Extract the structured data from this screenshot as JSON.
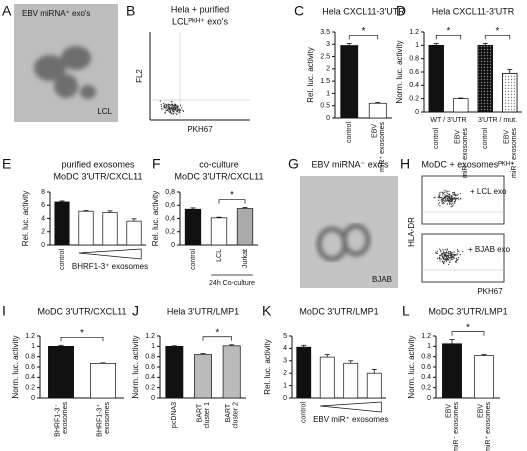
{
  "images": [
    {
      "label": "A",
      "title": "EBV miRNA⁺ exo's",
      "inset": "LCL"
    },
    {
      "label": "B",
      "title": "Hela + purified",
      "title2": "LCLᴾᴷᴴ⁺ exo's",
      "ylabel": "FL2",
      "xlabel": "PKH67"
    },
    {
      "label": "G",
      "title": "EBV miRNA⁻ exo's",
      "inset": "BJAB"
    },
    {
      "label": "H",
      "title": "MoDC + exosomesᴾᴷᴴ⁺",
      "insets": [
        "+ LCL exo",
        "+ BJAB exo"
      ],
      "ylabel": "HLA-DR",
      "xlabel": "PKH67"
    }
  ],
  "chart_data": [
    {
      "type": "bar",
      "label": "C",
      "title": "Hela CXCL11-3'UTR",
      "ylabel": "Rel. luc. activity",
      "categories": [
        "control",
        "EBV miR⁺ exosomes"
      ],
      "values": [
        2.95,
        0.6
      ],
      "errors": [
        0.08,
        0.03
      ],
      "colors": [
        "#111111",
        "#ffffff"
      ],
      "ylim": [
        0,
        3.5
      ],
      "yticks": [
        0,
        0.5,
        1,
        1.5,
        2,
        2.5,
        3,
        3.5
      ],
      "significance": [
        {
          "label": "*",
          "between": [
            0,
            1
          ]
        }
      ]
    },
    {
      "type": "bar",
      "label": "D",
      "title": "Hela CXCL11-3'UTR",
      "ylabel": "Norm. luc. activity",
      "categories": [
        "control",
        "EBV miR⁺ exosomes",
        "control",
        "EBV miR⁺ exosomes"
      ],
      "values": [
        1,
        0.2,
        1,
        0.58
      ],
      "errors": [
        0.03,
        0.01,
        0.03,
        0.06
      ],
      "colors": [
        "#111111",
        "#ffffff",
        "#111111",
        "#ffffff"
      ],
      "hatched": [
        false,
        false,
        true,
        true
      ],
      "ylim": [
        0,
        1.2
      ],
      "yticks": [
        0,
        0.2,
        0.4,
        0.6,
        0.8,
        1,
        1.2
      ],
      "groups": [
        {
          "label": "WT / 3'UTR",
          "between": [
            0,
            1
          ]
        },
        {
          "label": "3'UTR / mut.",
          "between": [
            2,
            3
          ]
        }
      ],
      "significance": [
        {
          "label": "*",
          "between": [
            0,
            1
          ]
        },
        {
          "label": "*",
          "between": [
            2,
            3
          ]
        }
      ]
    },
    {
      "type": "bar",
      "label": "E",
      "title": "purified exosomes",
      "subtitle": "MoDC 3'UTR/CXCL11",
      "ylabel": "Rel. luc. activity",
      "categories": [
        "control",
        null,
        null,
        null
      ],
      "values": [
        6.5,
        5.1,
        4.9,
        3.6
      ],
      "errors": [
        0.15,
        0.1,
        0.25,
        0.35
      ],
      "colors": [
        "#111111",
        "#ffffff",
        "#ffffff",
        "#ffffff"
      ],
      "ylim": [
        0,
        8
      ],
      "yticks": [
        0,
        2,
        4,
        6,
        8
      ],
      "ramp": {
        "label": "BHRF1-3⁺ exosomes",
        "between": [
          1,
          3
        ]
      }
    },
    {
      "type": "bar",
      "label": "F",
      "title": "co-culture",
      "subtitle": "MoDC 3'UTR/CXCL11",
      "ylabel": "Rel. luc. activity",
      "categories": [
        "control",
        "LCL",
        "Jurkat"
      ],
      "values": [
        0.54,
        0.41,
        0.55
      ],
      "errors": [
        0.02,
        0.01,
        0.015
      ],
      "colors": [
        "#111111",
        "#ffffff",
        "#aaaaaa"
      ],
      "ylim": [
        0,
        0.8
      ],
      "yticks": [
        0,
        {
          "value": 0.2,
          "label": "0,2"
        },
        {
          "value": 0.4,
          "label": "0,4"
        },
        {
          "value": 0.6,
          "label": "0,6"
        },
        {
          "value": 0.8,
          "label": "0,8"
        }
      ],
      "significance": [
        {
          "label": "*",
          "between": [
            1,
            2
          ]
        }
      ],
      "footnote": {
        "label": "24h Co-culture",
        "between": [
          1,
          2
        ]
      }
    },
    {
      "type": "bar",
      "label": "I",
      "title": "MoDC 3'UTR/CXCL11",
      "ylabel": "Norm. luc. activity",
      "categories": [
        "BHRF1-3⁻ exosomes",
        "BHRF1-3⁺ exosomes"
      ],
      "values": [
        1,
        0.67
      ],
      "errors": [
        0.02,
        0.01
      ],
      "colors": [
        "#111111",
        "#ffffff"
      ],
      "ylim": [
        0,
        1.2
      ],
      "yticks": [
        0,
        0.2,
        0.4,
        0.6,
        0.8,
        1,
        1.2
      ],
      "significance": [
        {
          "label": "*",
          "between": [
            0,
            1
          ]
        }
      ]
    },
    {
      "type": "bar",
      "label": "J",
      "title": "Hela 3'UTR/LMP1",
      "ylabel": "Norm. luc. activity",
      "categories": [
        "pcDNA3",
        "BART cluster 1",
        "BART cluster 2"
      ],
      "values": [
        1,
        0.84,
        1.01
      ],
      "errors": [
        0.01,
        0.02,
        0.02
      ],
      "colors": [
        "#111111",
        "#bbbbbb",
        "#bbbbbb"
      ],
      "ylim": [
        0,
        1.2
      ],
      "yticks": [
        0,
        0.2,
        0.4,
        0.6,
        0.8,
        1,
        1.2
      ],
      "significance": [
        {
          "label": "*",
          "between": [
            1,
            2
          ]
        }
      ]
    },
    {
      "type": "bar",
      "label": "K",
      "title": "MoDC 3'UTR/LMP1",
      "ylabel": "Rel. luc. activity",
      "categories": [
        "control",
        null,
        null,
        null
      ],
      "values": [
        4.1,
        3.3,
        2.8,
        2.0
      ],
      "errors": [
        0.15,
        0.2,
        0.2,
        0.3
      ],
      "colors": [
        "#111111",
        "#ffffff",
        "#ffffff",
        "#ffffff"
      ],
      "ylim": [
        0,
        5
      ],
      "yticks": [
        0,
        1,
        2,
        3,
        4,
        5
      ],
      "ramp": {
        "label": "EBV miR⁺ exosomes",
        "between": [
          1,
          3
        ]
      }
    },
    {
      "type": "bar",
      "label": "L",
      "title": "MoDC 3'UTR/LMP1",
      "ylabel": "Norm. luc. activity",
      "categories": [
        "EBV miR⁻ exosomes",
        "EBV miR⁺ exosomes"
      ],
      "values": [
        1.05,
        0.82
      ],
      "errors": [
        0.08,
        0.02
      ],
      "colors": [
        "#111111",
        "#ffffff"
      ],
      "ylim": [
        0,
        1.2
      ],
      "yticks": [
        0,
        0.2,
        0.4,
        0.6,
        0.8,
        1,
        1.2
      ],
      "significance": [
        {
          "label": "*",
          "between": [
            0,
            1
          ]
        }
      ]
    }
  ]
}
